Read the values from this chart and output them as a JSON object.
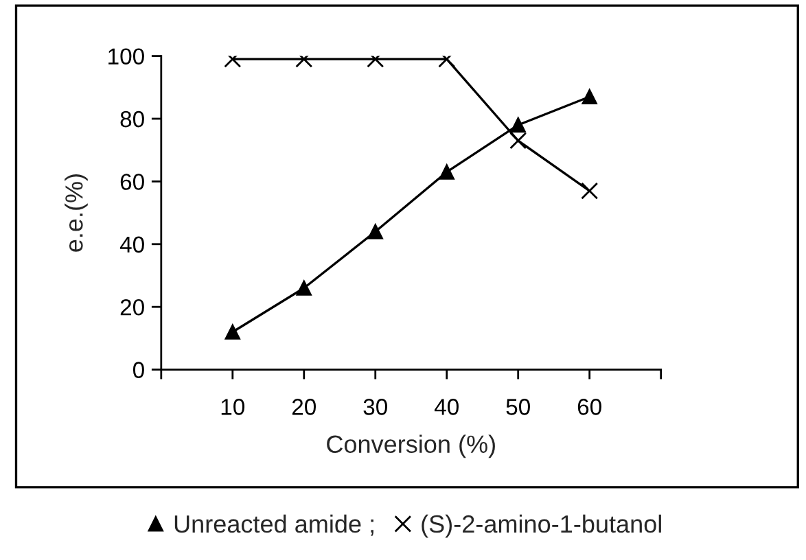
{
  "chart_data": {
    "type": "line",
    "xlabel": "Conversion (%)",
    "ylabel": "e.e.(%)",
    "x": [
      10,
      20,
      30,
      40,
      50,
      60
    ],
    "series": [
      {
        "name": "Unreacted amide ;",
        "color": "#000000",
        "marker": "triangle",
        "values": [
          12,
          26,
          44,
          63,
          78,
          87
        ]
      },
      {
        "name": "(S)-2-amino-1-butanol",
        "color": "#000000",
        "marker": "cross",
        "values": [
          99,
          99,
          99,
          99,
          73,
          57
        ]
      }
    ],
    "xlim": [
      0,
      70
    ],
    "xticks": [
      {
        "value": 0,
        "label": null
      },
      10,
      20,
      30,
      40,
      50,
      60,
      {
        "value": 70,
        "label": null
      }
    ],
    "ylim": [
      0,
      100
    ],
    "yticks": [
      0,
      20,
      40,
      60,
      80,
      100
    ],
    "grid": false,
    "legend": "bottom",
    "line_style": "solid"
  }
}
